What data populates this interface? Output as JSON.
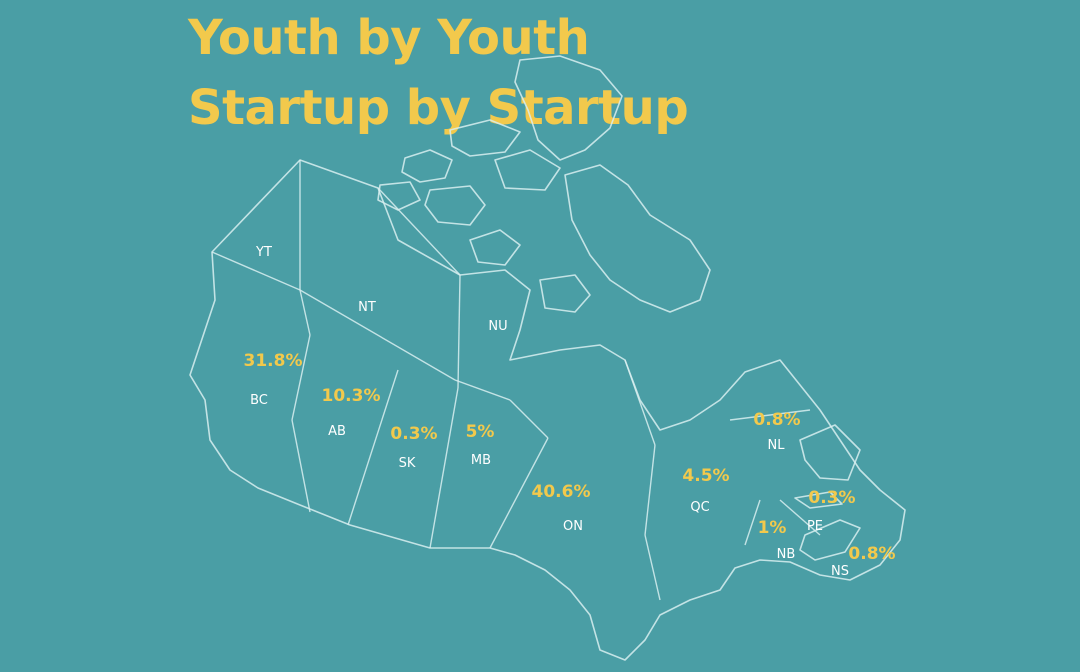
{
  "title": {
    "line1": "Youth by Youth",
    "line2": "Startup by Startup"
  },
  "colors": {
    "background": "#4a9ea5",
    "accent": "#f2c94c",
    "outline": "#d8eff0",
    "label": "#ffffff"
  },
  "provinces": {
    "yt": {
      "code": "YT"
    },
    "nt": {
      "code": "NT"
    },
    "nu": {
      "code": "NU"
    },
    "bc": {
      "code": "BC",
      "value": "31.8%"
    },
    "ab": {
      "code": "AB",
      "value": "10.3%"
    },
    "sk": {
      "code": "SK",
      "value": "0.3%"
    },
    "mb": {
      "code": "MB",
      "value": "5%"
    },
    "on": {
      "code": "ON",
      "value": "40.6%"
    },
    "qc": {
      "code": "QC",
      "value": "4.5%"
    },
    "nl": {
      "code": "NL",
      "value": "0.8%"
    },
    "nb": {
      "code": "NB",
      "value": "1%"
    },
    "pe": {
      "code": "PE",
      "value": "0.3%"
    },
    "ns": {
      "code": "NS",
      "value": "0.8%"
    }
  }
}
